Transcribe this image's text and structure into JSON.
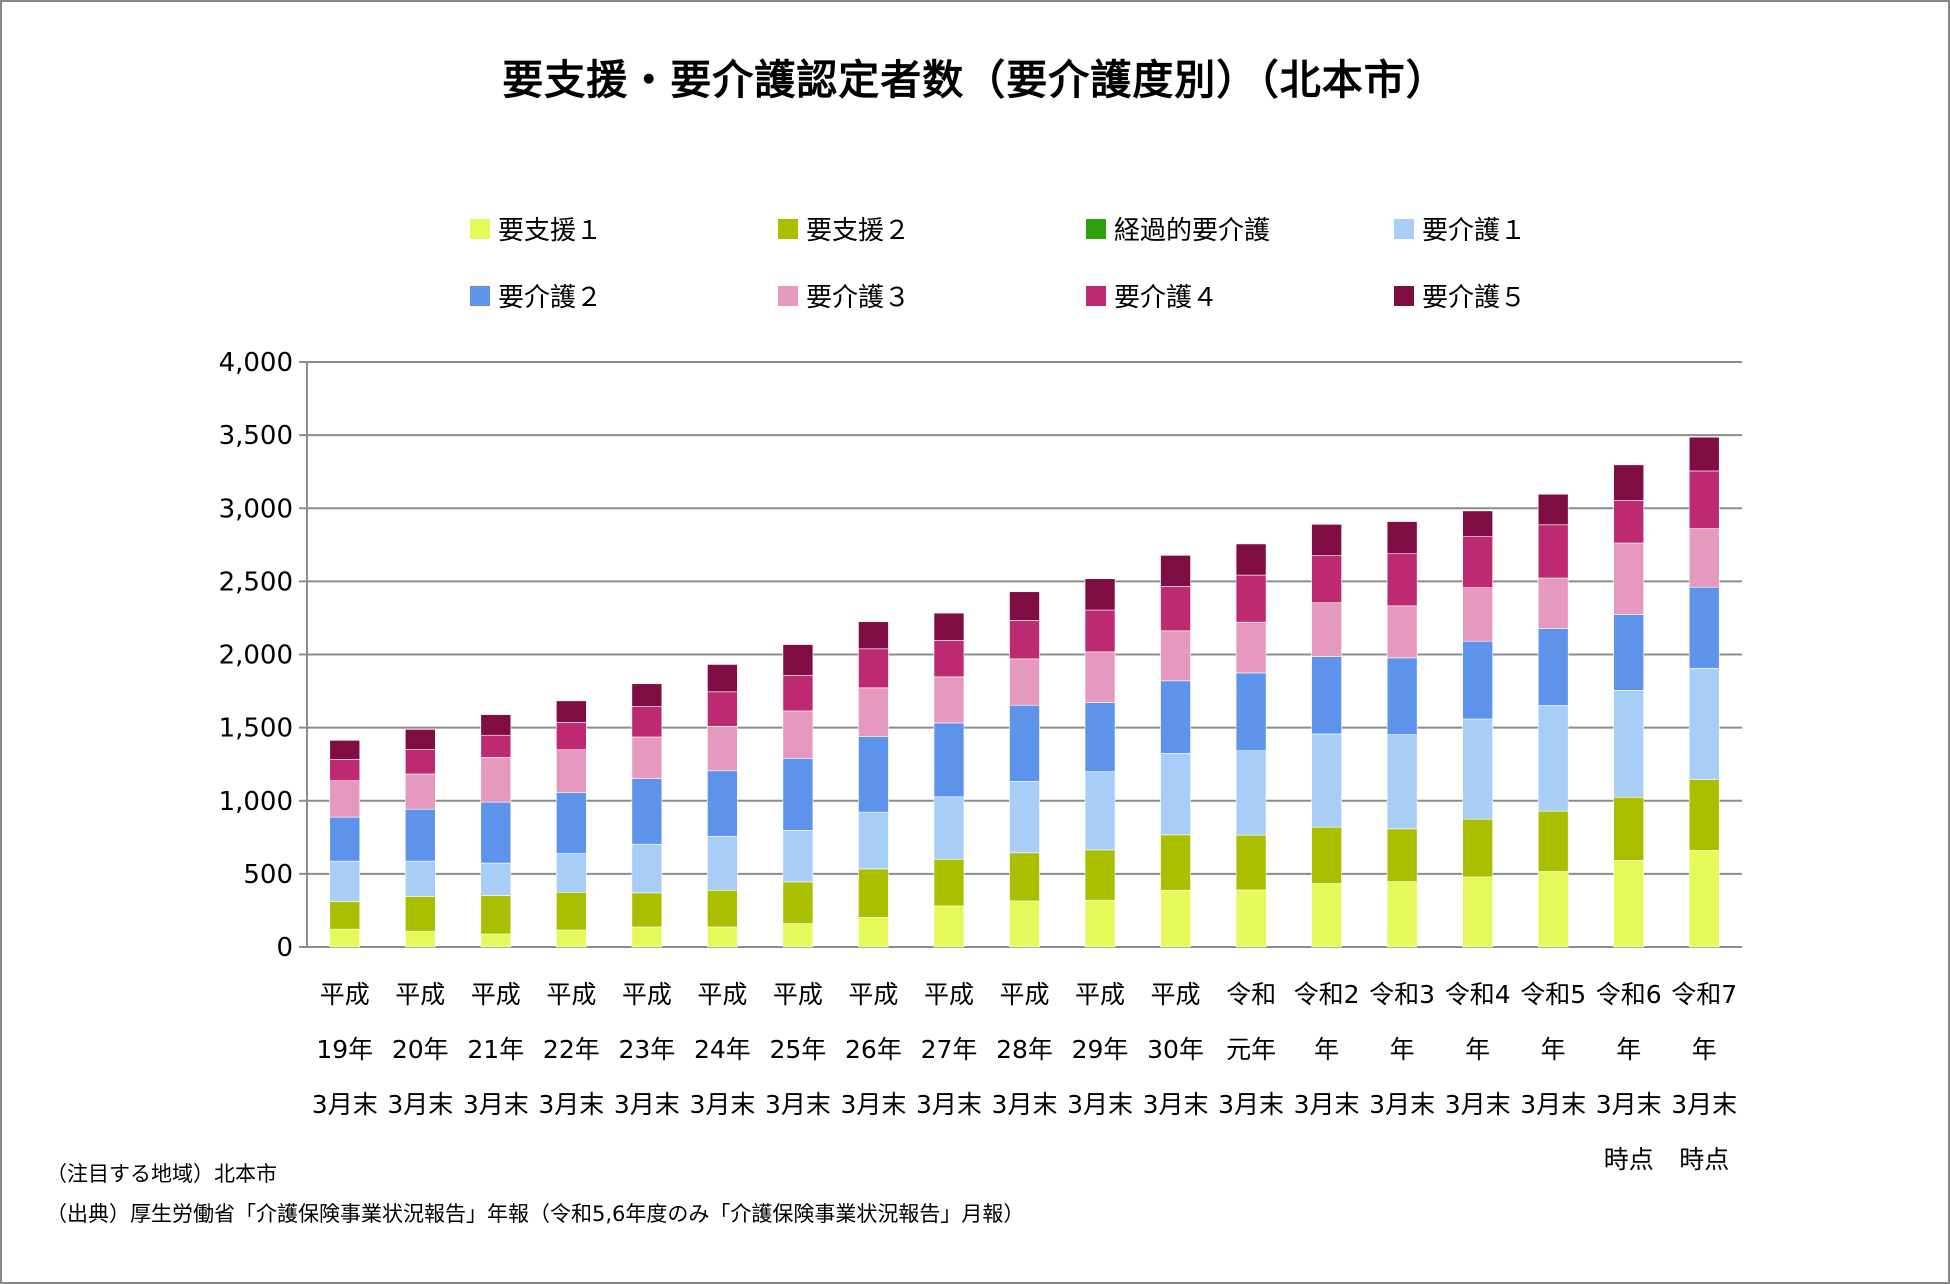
{
  "chart_data": {
    "type": "bar",
    "stacked": true,
    "title": "要支援・要介護認定者数（要介護度別）（北本市）",
    "xlabel": "",
    "ylabel": "",
    "ylim": [
      0,
      4000
    ],
    "yticks": [
      0,
      500,
      1000,
      1500,
      2000,
      2500,
      3000,
      3500,
      4000
    ],
    "ytick_labels": [
      "0",
      "500",
      "1,000",
      "1,500",
      "2,000",
      "2,500",
      "3,000",
      "3,500",
      "4,000"
    ],
    "grid": true,
    "legend_position": "top",
    "categories": [
      [
        "平成",
        "19年",
        "3月末"
      ],
      [
        "平成",
        "20年",
        "3月末"
      ],
      [
        "平成",
        "21年",
        "3月末"
      ],
      [
        "平成",
        "22年",
        "3月末"
      ],
      [
        "平成",
        "23年",
        "3月末"
      ],
      [
        "平成",
        "24年",
        "3月末"
      ],
      [
        "平成",
        "25年",
        "3月末"
      ],
      [
        "平成",
        "26年",
        "3月末"
      ],
      [
        "平成",
        "27年",
        "3月末"
      ],
      [
        "平成",
        "28年",
        "3月末"
      ],
      [
        "平成",
        "29年",
        "3月末"
      ],
      [
        "平成",
        "30年",
        "3月末"
      ],
      [
        "令和",
        "元年",
        "3月末"
      ],
      [
        "令和2",
        "年",
        "3月末"
      ],
      [
        "令和3",
        "年",
        "3月末"
      ],
      [
        "令和4",
        "年",
        "3月末"
      ],
      [
        "令和5",
        "年",
        "3月末"
      ],
      [
        "令和6",
        "年",
        "3月末",
        "時点"
      ],
      [
        "令和7",
        "年",
        "3月末",
        "時点"
      ]
    ],
    "series": [
      {
        "name": "要支援１",
        "color": "#E5F95A",
        "values": [
          122,
          108,
          89,
          116,
          137,
          137,
          160,
          203,
          281,
          315,
          320,
          388,
          390,
          434,
          447,
          479,
          516,
          592,
          660
        ]
      },
      {
        "name": "要支援２",
        "color": "#A9BF00",
        "values": [
          189,
          238,
          263,
          258,
          233,
          251,
          285,
          331,
          319,
          329,
          344,
          379,
          375,
          386,
          361,
          395,
          413,
          432,
          486
        ]
      },
      {
        "name": "経過的要介護",
        "color": "#2CA10A",
        "values": [
          0,
          0,
          0,
          0,
          0,
          0,
          0,
          0,
          0,
          0,
          0,
          0,
          0,
          0,
          0,
          0,
          0,
          0,
          0
        ]
      },
      {
        "name": "要介護１",
        "color": "#A8CDF7",
        "values": [
          276,
          241,
          222,
          265,
          333,
          368,
          352,
          388,
          427,
          488,
          535,
          557,
          577,
          637,
          644,
          685,
          722,
          731,
          760
        ]
      },
      {
        "name": "要介護２",
        "color": "#5D93EB",
        "values": [
          301,
          355,
          417,
          416,
          448,
          449,
          493,
          518,
          505,
          521,
          472,
          496,
          532,
          529,
          525,
          532,
          527,
          519,
          554
        ]
      },
      {
        "name": "要介護３",
        "color": "#E699BE",
        "values": [
          249,
          241,
          305,
          294,
          285,
          304,
          324,
          332,
          315,
          317,
          347,
          342,
          347,
          368,
          356,
          366,
          345,
          488,
          401
        ]
      },
      {
        "name": "要介護４",
        "color": "#BE2A72",
        "values": [
          146,
          167,
          152,
          187,
          208,
          236,
          244,
          267,
          249,
          263,
          286,
          304,
          322,
          322,
          356,
          349,
          364,
          292,
          394
        ]
      },
      {
        "name": "要介護５",
        "color": "#7F0C43",
        "values": [
          130,
          138,
          141,
          147,
          156,
          187,
          210,
          185,
          187,
          196,
          214,
          212,
          213,
          214,
          220,
          176,
          209,
          243,
          231
        ]
      }
    ]
  },
  "legend": [
    {
      "label": "要支援１",
      "color": "#E5F95A"
    },
    {
      "label": "要支援２",
      "color": "#A9BF00"
    },
    {
      "label": "経過的要介護",
      "color": "#2CA10A"
    },
    {
      "label": "要介護１",
      "color": "#A8CDF7"
    },
    {
      "label": "要介護２",
      "color": "#5D93EB"
    },
    {
      "label": "要介護３",
      "color": "#E699BE"
    },
    {
      "label": "要介護４",
      "color": "#BE2A72"
    },
    {
      "label": "要介護５",
      "color": "#7F0C43"
    }
  ],
  "notes": {
    "region": "（注目する地域）北本市",
    "source": "（出典）厚生労働省「介護保険事業状況報告」年報（令和5,6年度のみ「介護保険事業状況報告」月報）"
  }
}
